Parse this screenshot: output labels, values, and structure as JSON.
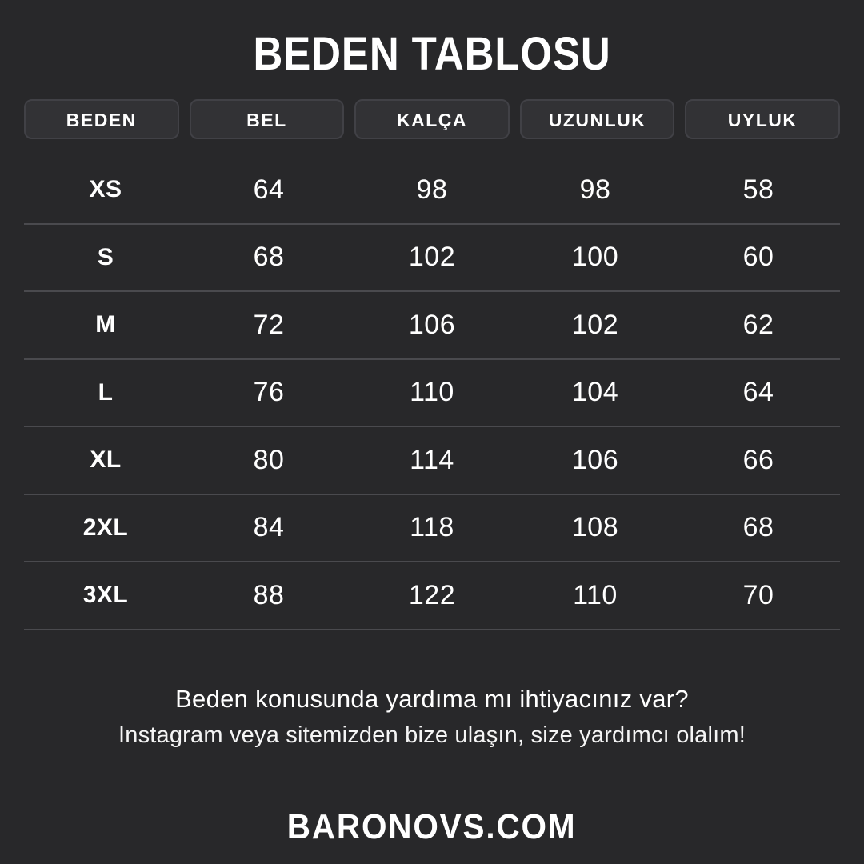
{
  "title": "BEDEN TABLOSU",
  "chart_data": {
    "type": "table",
    "title": "BEDEN TABLOSU",
    "columns": [
      "BEDEN",
      "BEL",
      "KALÇA",
      "UZUNLUK",
      "UYLUK"
    ],
    "rows": [
      [
        "XS",
        "64",
        "98",
        "98",
        "58"
      ],
      [
        "S",
        "68",
        "102",
        "100",
        "60"
      ],
      [
        "M",
        "72",
        "106",
        "102",
        "62"
      ],
      [
        "L",
        "76",
        "110",
        "104",
        "64"
      ],
      [
        "XL",
        "80",
        "114",
        "106",
        "66"
      ],
      [
        "2XL",
        "84",
        "118",
        "108",
        "68"
      ],
      [
        "3XL",
        "88",
        "122",
        "110",
        "70"
      ]
    ]
  },
  "footer": {
    "line1": "Beden konusunda yardıma mı ihtiyacınız var?",
    "line2": "Instagram veya sitemizden bize ulaşın, size yardımcı olalım!",
    "brand": "BARONOVS.COM"
  },
  "colors": {
    "background": "#28282a",
    "chip_background": "#323235",
    "chip_border": "#414146",
    "divider": "#4a4a4e",
    "text": "#ffffff"
  }
}
